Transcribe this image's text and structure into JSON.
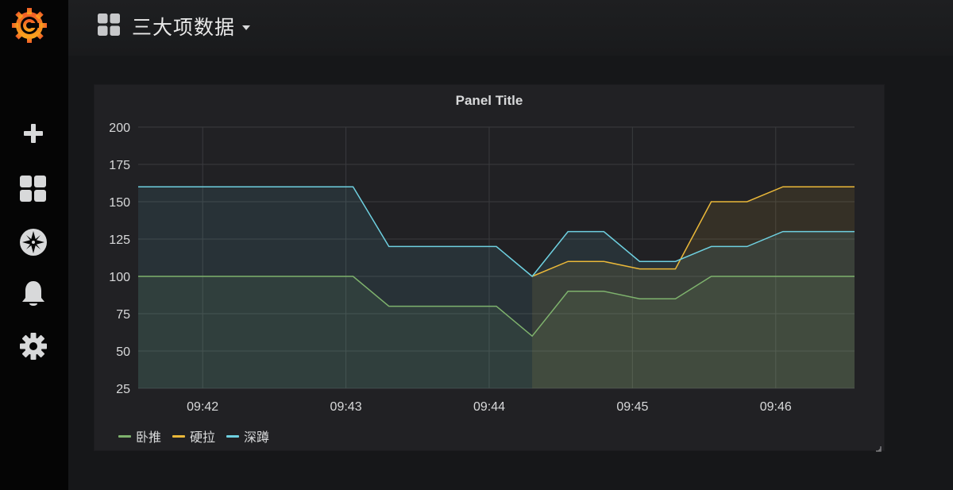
{
  "app": {
    "name": "Grafana"
  },
  "sidebar": {
    "items": [
      {
        "name": "create",
        "icon": "plus-icon"
      },
      {
        "name": "dashboards",
        "icon": "dashboard-grid-icon"
      },
      {
        "name": "explore",
        "icon": "compass-icon"
      },
      {
        "name": "alerting",
        "icon": "bell-icon"
      },
      {
        "name": "configuration",
        "icon": "gear-icon"
      }
    ]
  },
  "header": {
    "dashboard_title": "三大项数据",
    "icon": "dashboard-grid-icon"
  },
  "panel": {
    "title": "Panel Title"
  },
  "colors": {
    "sidebar_bg": "#050505",
    "page_bg": "#161719",
    "panel_bg": "#212124",
    "series_green": "#7eb26d",
    "series_yellow": "#eab839",
    "series_cyan": "#6ed0e0"
  },
  "chart_data": {
    "type": "area",
    "title": "Panel Title",
    "xlabel": "",
    "ylabel": "",
    "x": [
      "09:41:33",
      "09:42:48",
      "09:43:03",
      "09:43:18",
      "09:43:33",
      "09:43:48",
      "09:44:03",
      "09:44:18",
      "09:44:33",
      "09:44:48",
      "09:45:03",
      "09:45:18",
      "09:45:33",
      "09:45:48",
      "09:46:03",
      "09:46:18",
      "09:46:33"
    ],
    "x_ticks": [
      "09:42",
      "09:43",
      "09:44",
      "09:45",
      "09:46"
    ],
    "ylim": [
      25,
      200
    ],
    "y_ticks": [
      25,
      50,
      75,
      100,
      125,
      150,
      175,
      200
    ],
    "grid": true,
    "legend_position": "bottom-left",
    "series": [
      {
        "name": "卧推",
        "color": "#7eb26d",
        "values": [
          100,
          100,
          100,
          80,
          80,
          80,
          80,
          60,
          90,
          90,
          85,
          85,
          100,
          100,
          100,
          100,
          100
        ]
      },
      {
        "name": "硬拉",
        "color": "#eab839",
        "values": [
          null,
          null,
          null,
          null,
          null,
          null,
          null,
          100,
          110,
          110,
          105,
          105,
          150,
          150,
          160,
          160,
          160
        ]
      },
      {
        "name": "深蹲",
        "color": "#6ed0e0",
        "values": [
          160,
          160,
          160,
          120,
          120,
          120,
          120,
          100,
          130,
          130,
          110,
          110,
          120,
          120,
          130,
          130,
          130
        ]
      }
    ]
  }
}
